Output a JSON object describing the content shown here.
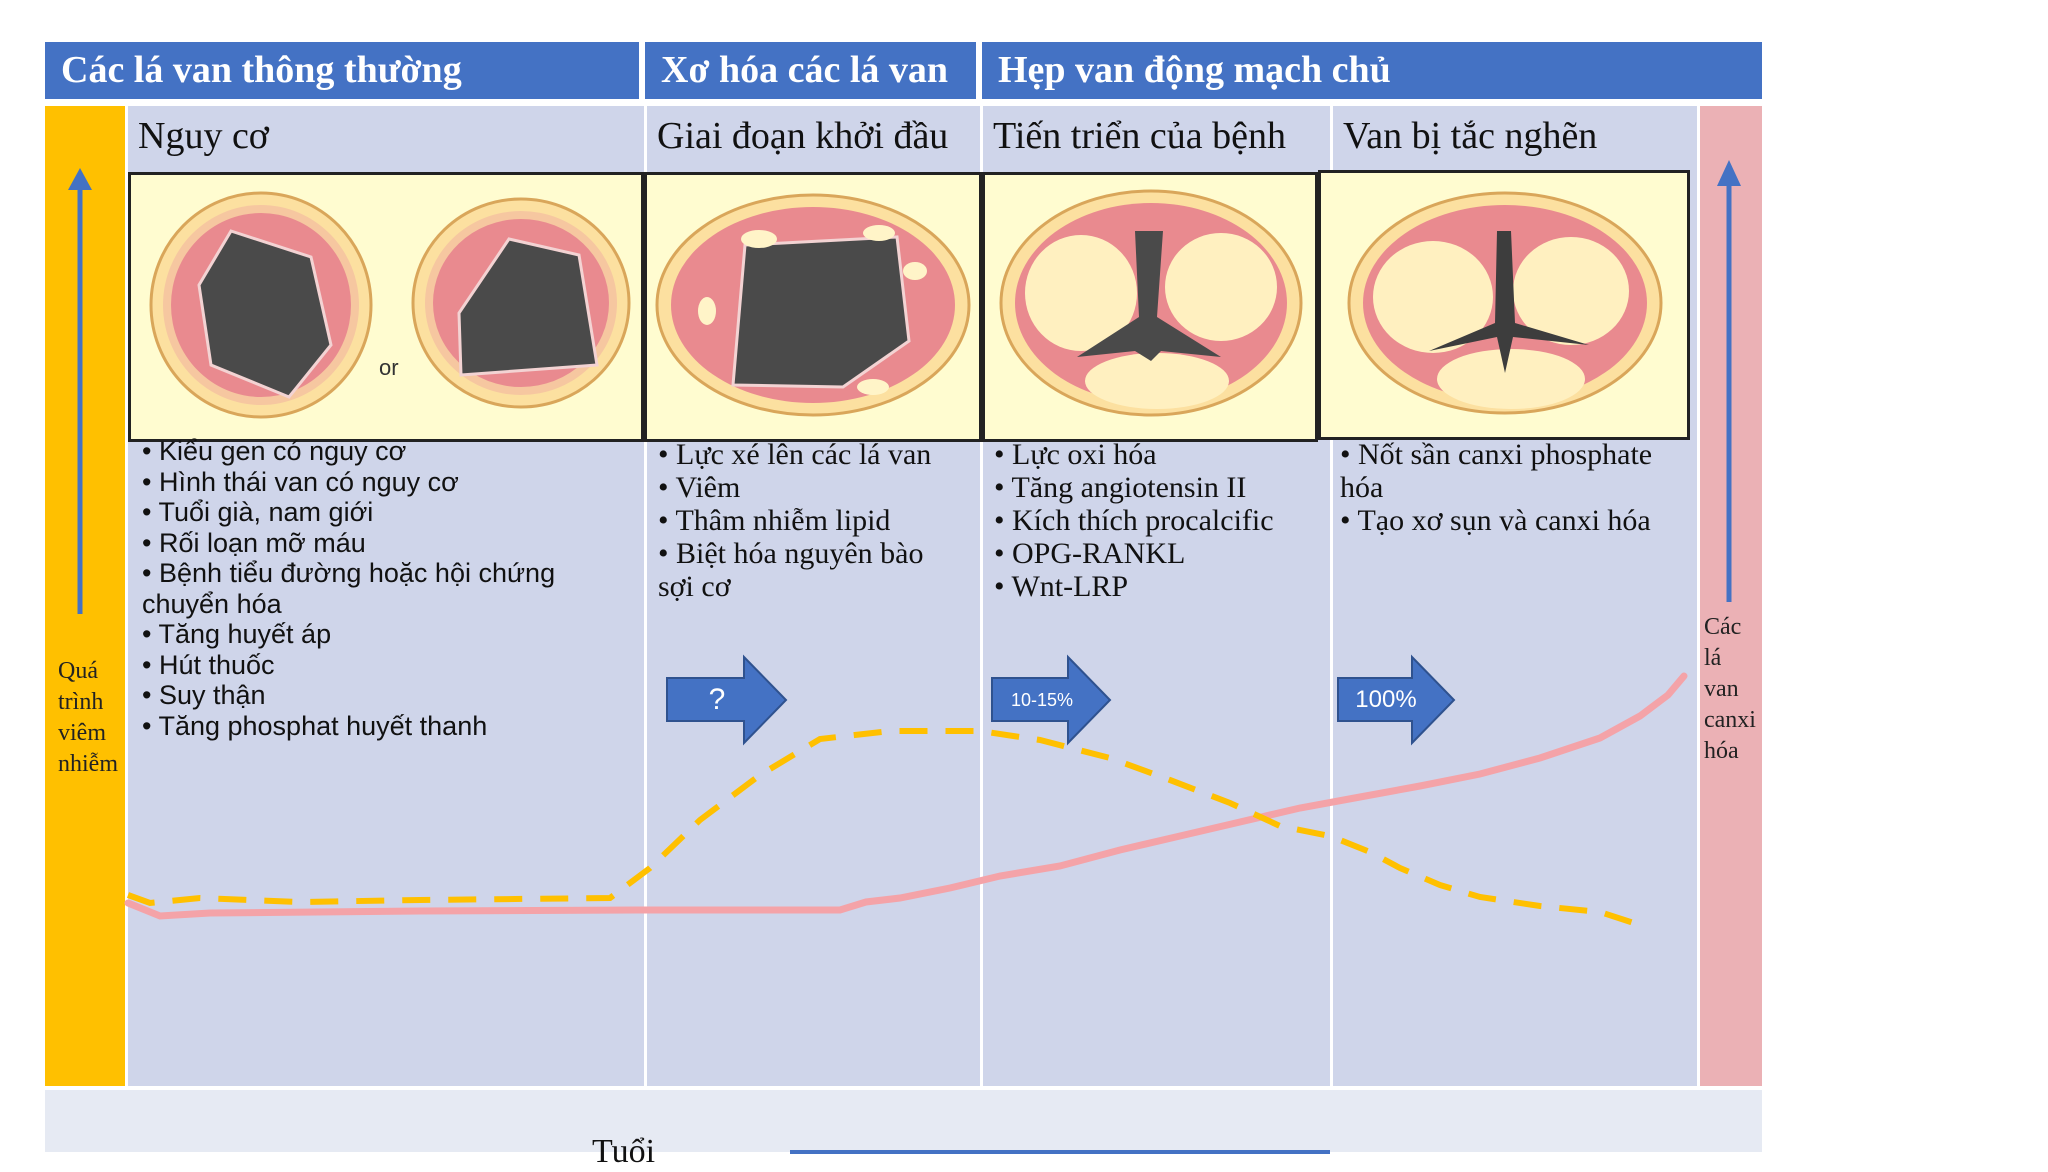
{
  "headers": [
    {
      "label": "Các lá van thông thường"
    },
    {
      "label": "Xơ hóa các lá van"
    },
    {
      "label": "Hẹp van động mạch chủ"
    }
  ],
  "stages": [
    {
      "label": "Nguy cơ"
    },
    {
      "label": "Giai đoạn khởi đầu"
    },
    {
      "label": "Tiến triển của bệnh"
    },
    {
      "label": "Van bị tắc nghẽn"
    }
  ],
  "image_or_label": "or",
  "lists": {
    "risk": [
      "• Kiểu gen có nguy cơ",
      "• Hình thái van có nguy cơ",
      "• Tuổi già, nam giới",
      "• Rối loạn mỡ máu",
      "• Bệnh tiểu đường hoặc hội chứng chuyển hóa",
      "• Tăng huyết áp",
      "• Hút thuốc",
      "• Suy thận",
      "• Tăng phosphat huyết thanh"
    ],
    "initiation": [
      "• Lực xé lên các lá van",
      "• Viêm",
      "• Thâm nhiễm lipid",
      "• Biệt hóa nguyên bào sợi cơ"
    ],
    "progression": [
      "• Lực oxi hóa",
      "• Tăng angiotensin II",
      "• Kích thích procalcific",
      "• OPG-RANKL",
      "• Wnt-LRP"
    ],
    "obstruction": [
      "• Nốt sần canxi phosphate hóa",
      "• Tạo xơ sụn và canxi hóa"
    ]
  },
  "arrows": [
    {
      "label": "?"
    },
    {
      "label": "10-15%"
    },
    {
      "label": "100%"
    }
  ],
  "left_axis_label": "Quá trình viêm nhiễm",
  "right_axis_label": "Các lá van canxi hóa",
  "bottom_label": "Tuổi",
  "colors": {
    "header_blue": "#4472c4",
    "panel": "#cfd5ea",
    "left_bar": "#ffc000",
    "right_bar": "#ebb1b5",
    "inflammation_curve": "#ffc000",
    "calcification_curve": "#f4a3a8",
    "image_bg": "#fffcd0"
  }
}
